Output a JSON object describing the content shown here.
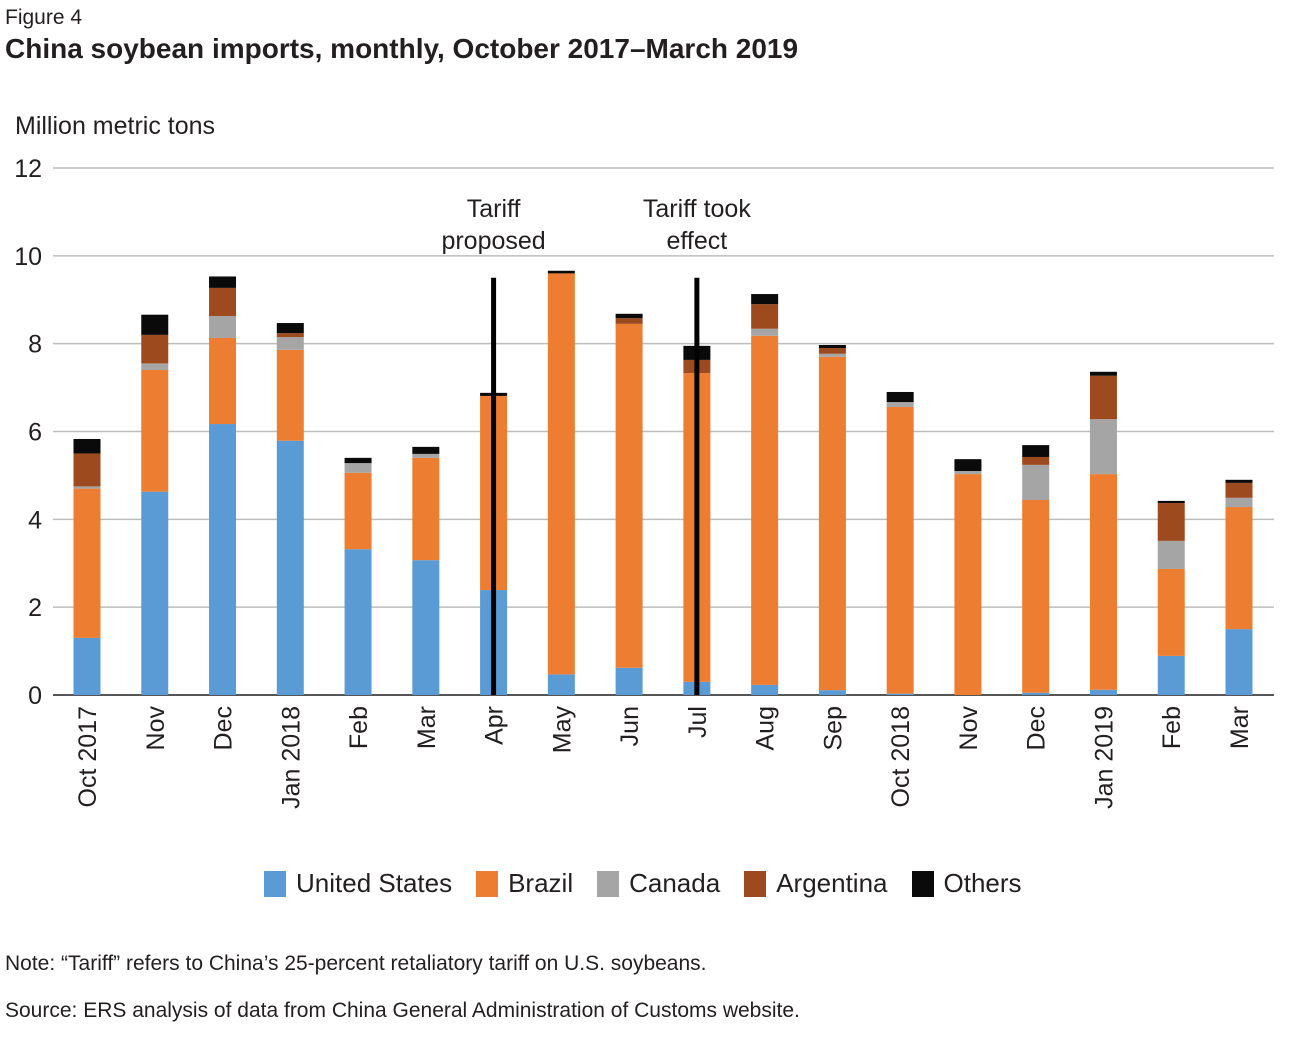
{
  "figure_label": "Figure 4",
  "title": "China soybean imports, monthly, October 2017–March 2019",
  "note": "Note: “Tariff” refers to China’s 25-percent retaliatory tariff on U.S. soybeans.",
  "source": "Source: ERS analysis of data from China General Administration of Customs website.",
  "chart_data": {
    "type": "bar",
    "stacked": true,
    "title": "China soybean imports, monthly, October 2017–March 2019",
    "xlabel": "",
    "ylabel": "Million metric tons",
    "ylim": [
      0,
      12
    ],
    "yticks": [
      0,
      2,
      4,
      6,
      8,
      10,
      12
    ],
    "grid": true,
    "legend_position": "bottom",
    "categories": [
      "Oct 2017",
      "Nov",
      "Dec",
      "Jan 2018",
      "Feb",
      "Mar",
      "Apr",
      "May",
      "Jun",
      "Jul",
      "Aug",
      "Sep",
      "Oct 2018",
      "Nov",
      "Dec",
      "Jan 2019",
      "Feb",
      "Mar"
    ],
    "series": [
      {
        "name": "United States",
        "color": "#5b9bd5",
        "values": [
          1.3,
          4.63,
          6.17,
          5.79,
          3.32,
          3.07,
          2.39,
          0.47,
          0.62,
          0.3,
          0.23,
          0.11,
          0.03,
          0.0,
          0.05,
          0.12,
          0.89,
          1.5
        ]
      },
      {
        "name": "Brazil",
        "color": "#ed7d31",
        "values": [
          3.4,
          2.77,
          1.96,
          2.07,
          1.74,
          2.33,
          4.42,
          9.13,
          7.83,
          7.03,
          7.95,
          7.59,
          6.53,
          5.03,
          4.39,
          4.91,
          1.98,
          2.78
        ]
      },
      {
        "name": "Canada",
        "color": "#a5a5a5",
        "values": [
          0.05,
          0.15,
          0.5,
          0.29,
          0.22,
          0.09,
          0.0,
          0.0,
          0.0,
          0.0,
          0.16,
          0.07,
          0.11,
          0.07,
          0.8,
          1.25,
          0.64,
          0.21
        ]
      },
      {
        "name": "Argentina",
        "color": "#9e4a1f",
        "values": [
          0.75,
          0.65,
          0.64,
          0.09,
          0.0,
          0.0,
          0.0,
          0.0,
          0.13,
          0.3,
          0.56,
          0.13,
          0.0,
          0.0,
          0.18,
          0.99,
          0.86,
          0.34
        ]
      },
      {
        "name": "Others",
        "color": "#0a0a0a",
        "values": [
          0.33,
          0.46,
          0.26,
          0.23,
          0.12,
          0.16,
          0.07,
          0.06,
          0.1,
          0.32,
          0.23,
          0.07,
          0.23,
          0.27,
          0.27,
          0.09,
          0.05,
          0.07
        ]
      }
    ],
    "annotations": [
      {
        "label_lines": [
          "Tariff",
          "proposed"
        ],
        "category": "Apr",
        "line_top_value": 9.5
      },
      {
        "label_lines": [
          "Tariff took",
          "effect"
        ],
        "category": "Jul",
        "line_top_value": 9.5
      }
    ]
  }
}
